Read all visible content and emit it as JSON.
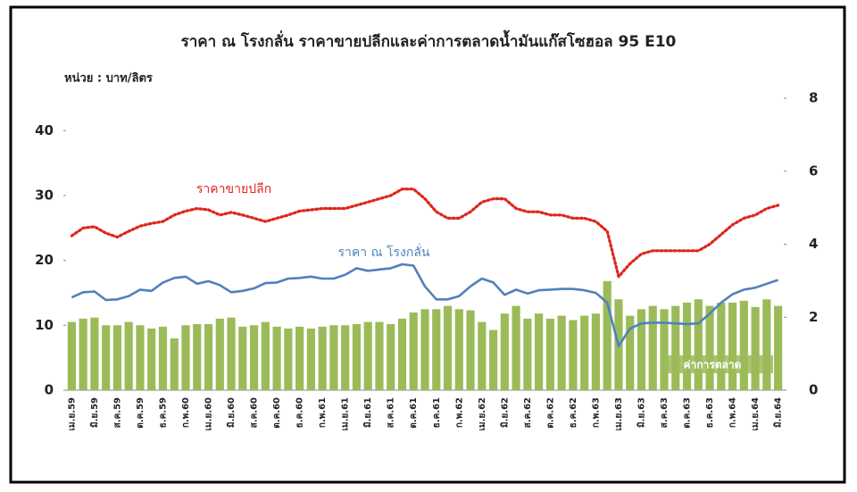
{
  "chart_data": {
    "type": "bar",
    "title": "ราคา ณ โรงกลั่น ราคาขายปลีกและค่าการตลาดน้ำมันแก๊สโซฮอล 95 E10",
    "subtitle": "หน่วย : บาท/ลิตร",
    "categories": [
      "เม.ย.59",
      null,
      "มิ.ย.59",
      null,
      "ส.ค.59",
      null,
      "ต.ค.59",
      null,
      "ธ.ค.59",
      null,
      "ก.พ.60",
      null,
      "เม.ย.60",
      null,
      "มิ.ย.60",
      null,
      "ส.ค.60",
      null,
      "ต.ค.60",
      null,
      "ธ.ค.60",
      null,
      "ก.พ.61",
      null,
      "เม.ย.61",
      null,
      "มิ.ย.61",
      null,
      "ส.ค.61",
      null,
      "ต.ค.61",
      null,
      "ธ.ค.61",
      null,
      "ก.พ.62",
      null,
      "เม.ย.62",
      null,
      "มิ.ย.62",
      null,
      "ส.ค.62",
      null,
      "ต.ค.62",
      null,
      "ธ.ค.62",
      null,
      "ก.พ.63",
      null,
      "เม.ย.63",
      null,
      "มิ.ย.63",
      null,
      "ส.ค.63",
      null,
      "ต.ค.63",
      null,
      "ธ.ค.63",
      null,
      "ก.พ.64",
      null,
      "เม.ย.64",
      null,
      "มิ.ย.64"
    ],
    "series": [
      {
        "name": "ค่าการตลาด",
        "color": "#9bbb59",
        "mark": "bar",
        "axis": "y2",
        "values": [
          1.87,
          1.96,
          1.99,
          1.78,
          1.78,
          1.87,
          1.78,
          1.69,
          1.74,
          1.42,
          1.78,
          1.81,
          1.81,
          1.96,
          1.99,
          1.74,
          1.78,
          1.87,
          1.74,
          1.69,
          1.74,
          1.69,
          1.74,
          1.78,
          1.78,
          1.81,
          1.87,
          1.87,
          1.81,
          1.96,
          2.13,
          2.22,
          2.22,
          2.31,
          2.22,
          2.19,
          1.87,
          1.65,
          2.1,
          2.31,
          1.96,
          2.1,
          1.96,
          2.04,
          1.92,
          2.04,
          2.1,
          2.99,
          2.49,
          2.04,
          2.22,
          2.31,
          2.22,
          2.31,
          2.4,
          2.49,
          2.31,
          2.4,
          2.4,
          2.45,
          2.28,
          2.49,
          2.31
        ]
      },
      {
        "name": "ราคาขายปลีก",
        "color": "#e0251b",
        "mark": "line",
        "dash": true,
        "values": [
          23.8,
          25,
          25.2,
          24.2,
          23.6,
          24.5,
          25.3,
          25.7,
          26,
          27,
          27.6,
          28,
          27.8,
          27,
          27.4,
          27,
          26.5,
          26,
          26.5,
          27,
          27.6,
          27.8,
          28,
          28,
          28,
          28.5,
          29,
          29.5,
          30,
          31,
          31,
          29.5,
          27.5,
          26.5,
          26.5,
          27.5,
          29,
          29.5,
          29.5,
          28,
          27.5,
          27.5,
          27,
          27,
          26.5,
          26.5,
          26,
          24.5,
          17.5,
          19.5,
          21,
          21.5,
          21.5,
          21.5,
          21.5,
          21.5,
          22.5,
          24,
          25.5,
          26.5,
          27,
          28,
          28.5
        ]
      },
      {
        "name": "ราคา ณ โรงกลั่น",
        "color": "#4f81bd",
        "mark": "line",
        "dash": false,
        "values": [
          14.3,
          15.1,
          15.2,
          13.9,
          14,
          14.5,
          15.5,
          15.3,
          16.6,
          17.3,
          17.5,
          16.4,
          16.8,
          16.2,
          15.1,
          15.3,
          15.7,
          16.5,
          16.6,
          17.2,
          17.3,
          17.5,
          17.2,
          17.2,
          17.8,
          18.8,
          18.4,
          18.6,
          18.8,
          19.4,
          19.2,
          16,
          14,
          14,
          14.5,
          16,
          17.2,
          16.6,
          14.7,
          15.5,
          14.9,
          15.4,
          15.5,
          15.6,
          15.6,
          15.4,
          15,
          13.5,
          6.8,
          9.5,
          10.3,
          10.4,
          10.4,
          10.3,
          10.2,
          10.3,
          11.8,
          13.5,
          14.8,
          15.5,
          15.8,
          16.4,
          17
        ]
      }
    ],
    "ylim": [
      0,
      45
    ],
    "yticks": [
      0,
      10,
      20,
      30,
      40
    ],
    "y2lim": [
      0,
      8
    ],
    "y2ticks": [
      0,
      2,
      4,
      6,
      8
    ],
    "grid": false
  }
}
